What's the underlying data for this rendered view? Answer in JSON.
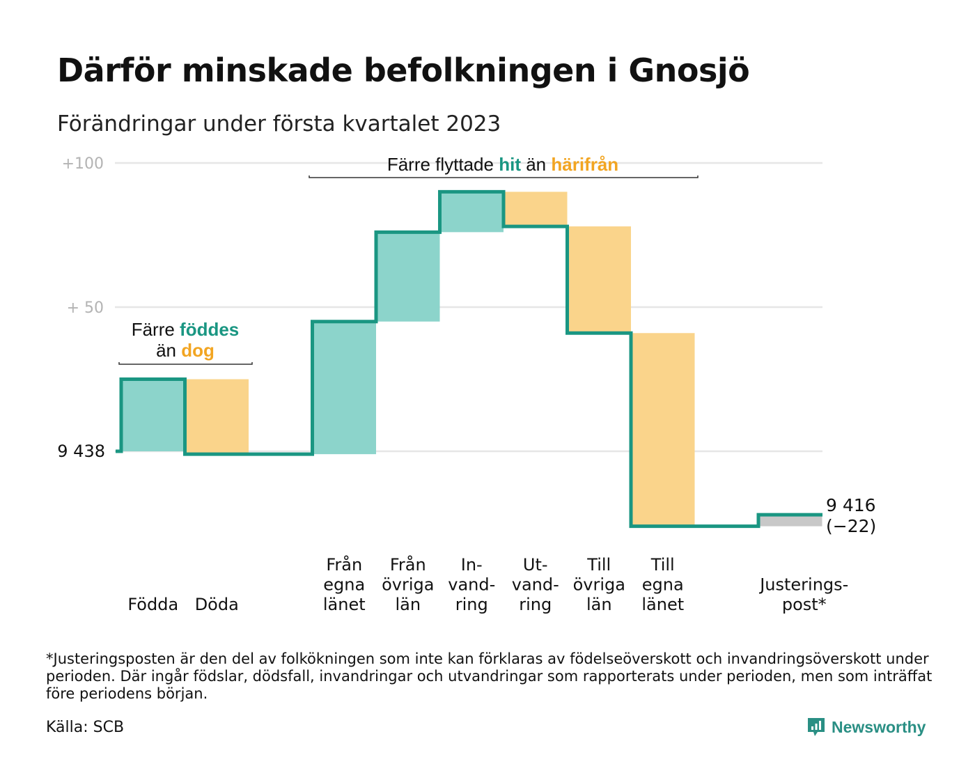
{
  "title": "Därför minskade befolkningen i Gnosjö",
  "subtitle": "Förändringar under första kvartalet 2023",
  "footnote": "*Justeringsposten är den del av folkökningen som inte kan förklaras av födelseöverskott och invandringsöverskott under perioden. Där ingår födslar, dödsfall, invandringar och utvandringar som rapporterats under perioden, men som inträffat före periodens början.",
  "source": "Källa: SCB",
  "brand": {
    "name": "Newsworthy",
    "icon": "newsworthy-logo-icon"
  },
  "colors": {
    "positive": "#8cd4cb",
    "negative": "#fad48b",
    "line": "#1a9682",
    "adjustment": "#c8c8c8",
    "grid": "#e6e6e6",
    "accent_teal": "#1a9682",
    "accent_orange": "#f2a522"
  },
  "chart_data": {
    "type": "waterfall",
    "start_value": 9438,
    "end_value": 9416,
    "start_label": "9 438",
    "end_label": "9 416",
    "end_change_label": "(−22)",
    "change_total": -22,
    "ylim": [
      -27,
      103
    ],
    "yticks": [
      {
        "value": 100,
        "label": "+100"
      },
      {
        "value": 50,
        "label": "+ 50"
      }
    ],
    "grid": true,
    "categories": [
      {
        "key": "fodda",
        "label_lines": [
          "Födda"
        ],
        "change": 25,
        "kind": "positive"
      },
      {
        "key": "doda",
        "label_lines": [
          "Döda"
        ],
        "change": -26,
        "kind": "negative"
      },
      {
        "key": "fran_egna_lanet",
        "label_lines": [
          "Från",
          "egna",
          "länet"
        ],
        "change": 46,
        "kind": "positive"
      },
      {
        "key": "fran_ovriga_lan",
        "label_lines": [
          "Från",
          "övriga",
          "län"
        ],
        "change": 31,
        "kind": "positive"
      },
      {
        "key": "invandring",
        "label_lines": [
          "In-",
          "vand-",
          "ring"
        ],
        "change": 14,
        "kind": "positive"
      },
      {
        "key": "utvandring",
        "label_lines": [
          "Ut-",
          "vand-",
          "ring"
        ],
        "change": -12,
        "kind": "negative"
      },
      {
        "key": "till_ovriga_lan",
        "label_lines": [
          "Till",
          "övriga",
          "län"
        ],
        "change": -37,
        "kind": "negative"
      },
      {
        "key": "till_egna_lanet",
        "label_lines": [
          "Till",
          "egna",
          "länet"
        ],
        "change": -67,
        "kind": "negative"
      },
      {
        "key": "justeringspost",
        "label_lines": [
          "Justerings-",
          "post*"
        ],
        "change": 4,
        "kind": "adjustment"
      }
    ],
    "annotations": [
      {
        "key": "births",
        "parts": [
          {
            "text": "Färre ",
            "style": "plain"
          },
          {
            "text": "föddes",
            "style": "teal"
          },
          {
            "text": "än ",
            "style": "plain"
          },
          {
            "text": "dog",
            "style": "orange"
          }
        ]
      },
      {
        "key": "migration",
        "parts": [
          {
            "text": "Färre flyttade ",
            "style": "plain"
          },
          {
            "text": "hit",
            "style": "teal"
          },
          {
            "text": " än ",
            "style": "plain"
          },
          {
            "text": "härifrån",
            "style": "orange"
          }
        ]
      }
    ]
  }
}
